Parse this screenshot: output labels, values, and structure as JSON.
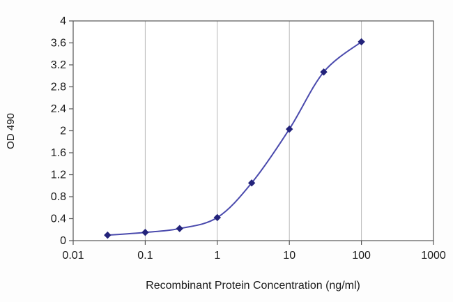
{
  "chart_data": {
    "type": "line",
    "title": "",
    "xlabel": "Recombinant Protein Concentration (ng/ml)",
    "ylabel": "OD 490",
    "xscale": "log",
    "xlim": [
      0.01,
      1000
    ],
    "ylim": [
      0,
      4
    ],
    "grid": "vertical-only",
    "legend": "none",
    "series": [
      {
        "name": "OD 490",
        "x": [
          0.03,
          0.1,
          0.3,
          1,
          3,
          10,
          30,
          100
        ],
        "y": [
          0.1,
          0.15,
          0.22,
          0.42,
          1.05,
          2.03,
          3.07,
          3.62
        ],
        "line_color": "#4a4aad",
        "marker": "diamond",
        "marker_color": "#23237a",
        "smooth": true
      }
    ],
    "x_ticks": [
      {
        "value": 0.01,
        "label": "0.01"
      },
      {
        "value": 0.1,
        "label": "0.1"
      },
      {
        "value": 1,
        "label": "1"
      },
      {
        "value": 10,
        "label": "10"
      },
      {
        "value": 100,
        "label": "100"
      },
      {
        "value": 1000,
        "label": "1000"
      }
    ],
    "y_ticks": [
      {
        "value": 0,
        "label": "0"
      },
      {
        "value": 0.4,
        "label": "0.4"
      },
      {
        "value": 0.8,
        "label": "0.8"
      },
      {
        "value": 1.2,
        "label": "1.2"
      },
      {
        "value": 1.6,
        "label": "1.6"
      },
      {
        "value": 2,
        "label": "2"
      },
      {
        "value": 2.4,
        "label": "2.4"
      },
      {
        "value": 2.8,
        "label": "2.8"
      },
      {
        "value": 3.2,
        "label": "3.2"
      },
      {
        "value": 3.6,
        "label": "3.6"
      },
      {
        "value": 4,
        "label": "4"
      }
    ],
    "colors": {
      "grid": "#b8b8b8",
      "axis": "#4d4d4d",
      "border": "#555555",
      "text": "#1a1a1a",
      "plot_background": "#ffffff"
    }
  }
}
